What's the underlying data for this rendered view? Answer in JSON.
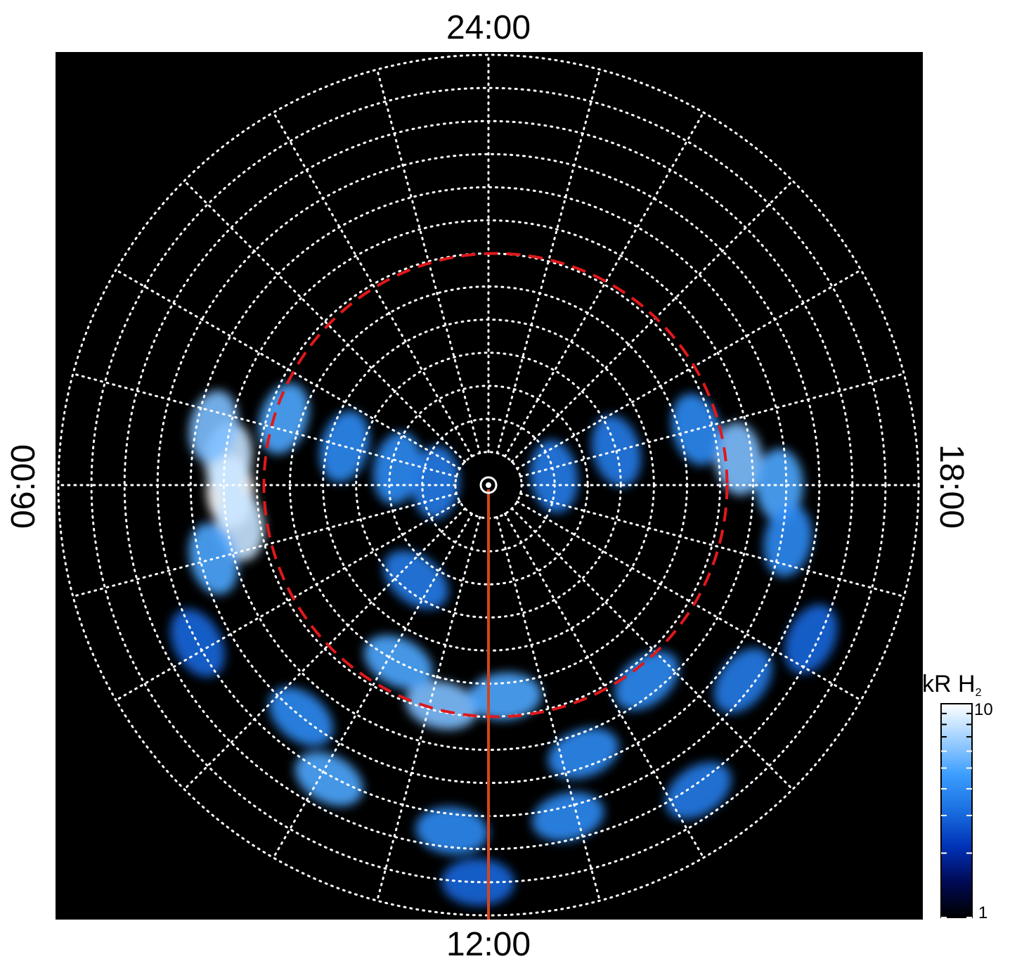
{
  "chart_data": {
    "type": "heatmap",
    "projection": "polar (local time vs. colatitude)",
    "background_color": "#000000",
    "lt_labels": {
      "top": "24:00",
      "bottom": "12:00",
      "left": "06:00",
      "right": "18:00"
    },
    "grid": {
      "visible": true,
      "style": "dotted",
      "color": "#ffffff",
      "n_rings": 13,
      "meridian_spacing_hours": 1
    },
    "reference_circle": {
      "style": "dashed",
      "color": "#e0181b",
      "ring_index": 7
    },
    "meridian_marker": {
      "local_time": "12:00",
      "color": "#d2451e"
    },
    "colorbar": {
      "label": "kR H",
      "label_subscript": "2",
      "scale": "log",
      "min": 1,
      "max": 10,
      "min_label": "1",
      "max_label": "10",
      "colors": [
        "#000000",
        "#000a55",
        "#0033b8",
        "#1a6fe0",
        "#3b9dff",
        "#9fd0ff",
        "#ffffff"
      ]
    },
    "emission_patches": [
      {
        "lt_hour": 6.1,
        "ring": 7.8,
        "intensity": 10
      },
      {
        "lt_hour": 5.6,
        "ring": 7.9,
        "intensity": 8
      },
      {
        "lt_hour": 6.6,
        "ring": 7.6,
        "intensity": 8
      },
      {
        "lt_hour": 5.2,
        "ring": 8.5,
        "intensity": 6
      },
      {
        "lt_hour": 7.0,
        "ring": 8.6,
        "intensity": 5
      },
      {
        "lt_hour": 4.8,
        "ring": 6.5,
        "intensity": 5
      },
      {
        "lt_hour": 5.0,
        "ring": 4.5,
        "intensity": 4
      },
      {
        "lt_hour": 5.3,
        "ring": 2.8,
        "intensity": 4
      },
      {
        "lt_hour": 5.8,
        "ring": 1.6,
        "intensity": 3.5
      },
      {
        "lt_hour": 18.4,
        "ring": 7.6,
        "intensity": 6
      },
      {
        "lt_hour": 18.0,
        "ring": 8.8,
        "intensity": 5
      },
      {
        "lt_hour": 17.3,
        "ring": 9.2,
        "intensity": 4
      },
      {
        "lt_hour": 19.0,
        "ring": 6.5,
        "intensity": 4
      },
      {
        "lt_hour": 19.0,
        "ring": 4.0,
        "intensity": 3.5
      },
      {
        "lt_hour": 18.5,
        "ring": 2.0,
        "intensity": 3.5
      },
      {
        "lt_hour": 11.2,
        "ring": 6.8,
        "intensity": 6
      },
      {
        "lt_hour": 12.3,
        "ring": 6.4,
        "intensity": 5
      },
      {
        "lt_hour": 10.2,
        "ring": 6.0,
        "intensity": 5
      },
      {
        "lt_hour": 9.5,
        "ring": 3.6,
        "intensity": 3.5
      },
      {
        "lt_hour": 13.3,
        "ring": 8.6,
        "intensity": 4
      },
      {
        "lt_hour": 14.6,
        "ring": 7.6,
        "intensity": 4
      },
      {
        "lt_hour": 12.9,
        "ring": 10.3,
        "intensity": 4
      },
      {
        "lt_hour": 11.6,
        "ring": 10.5,
        "intensity": 4
      },
      {
        "lt_hour": 10.1,
        "ring": 10.1,
        "intensity": 5
      },
      {
        "lt_hour": 9.4,
        "ring": 9.0,
        "intensity": 4
      },
      {
        "lt_hour": 15.5,
        "ring": 9.7,
        "intensity": 3.5
      },
      {
        "lt_hour": 14.3,
        "ring": 11.2,
        "intensity": 3.5
      },
      {
        "lt_hour": 11.9,
        "ring": 12.0,
        "intensity": 3
      },
      {
        "lt_hour": 16.3,
        "ring": 10.8,
        "intensity": 3
      },
      {
        "lt_hour": 7.9,
        "ring": 10.0,
        "intensity": 3
      }
    ]
  }
}
